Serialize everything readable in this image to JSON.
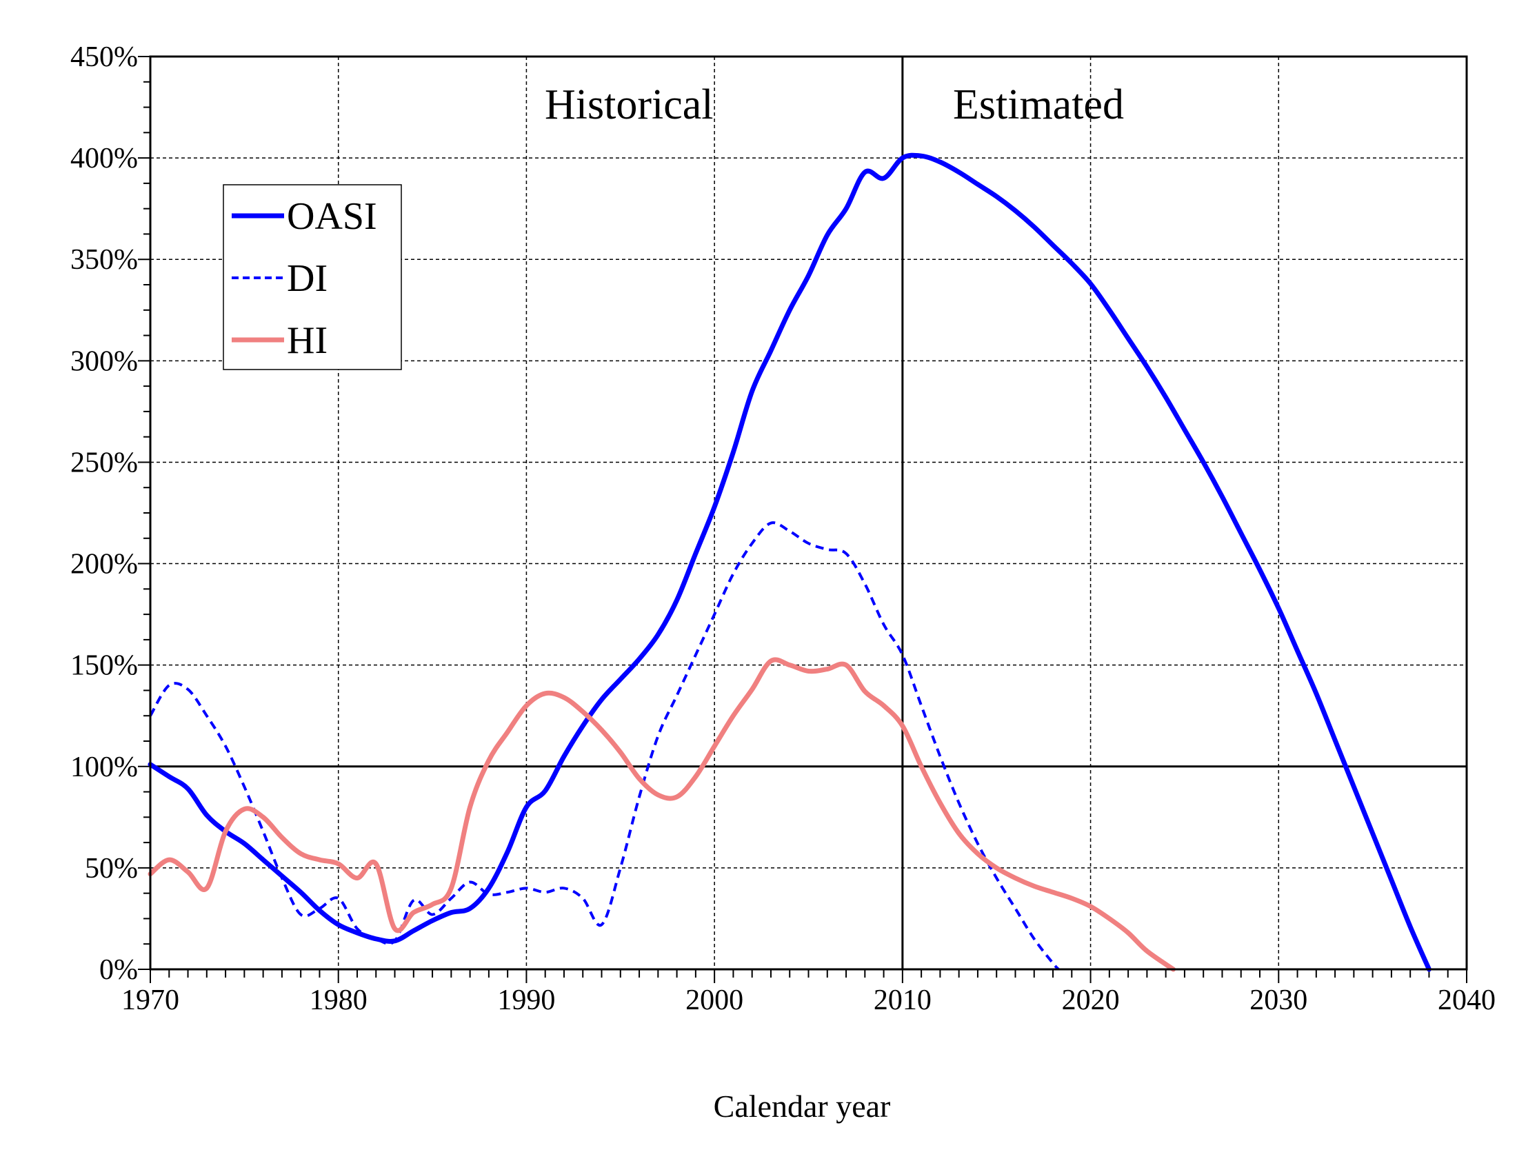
{
  "chart_data": {
    "type": "line",
    "title": "",
    "xlabel": "Calendar year",
    "ylabel": "",
    "xlim": [
      1970,
      2040
    ],
    "ylim": [
      0,
      450
    ],
    "x_ticks": [
      "1970",
      "1980",
      "1990",
      "2000",
      "2010",
      "2020",
      "2030",
      "2040"
    ],
    "y_ticks": [
      "0%",
      "50%",
      "100%",
      "150%",
      "200%",
      "250%",
      "300%",
      "350%",
      "400%",
      "450%"
    ],
    "grid": true,
    "legend_placement": "upper-left",
    "reference_lines": {
      "y": 100,
      "x": 2010
    },
    "annotations": [
      "Historical",
      "Estimated"
    ],
    "series": [
      {
        "name": "OASI",
        "color": "#0000ff",
        "style": "solid",
        "x": [
          1970,
          1971,
          1972,
          1973,
          1974,
          1975,
          1976,
          1977,
          1978,
          1979,
          1980,
          1981,
          1982,
          1983,
          1984,
          1985,
          1986,
          1987,
          1988,
          1989,
          1990,
          1991,
          1992,
          1993,
          1994,
          1995,
          1996,
          1997,
          1998,
          1999,
          2000,
          2001,
          2002,
          2003,
          2004,
          2005,
          2006,
          2007,
          2008,
          2009,
          2010,
          2011,
          2012,
          2013,
          2014,
          2015,
          2016,
          2017,
          2018,
          2019,
          2020,
          2021,
          2022,
          2023,
          2024,
          2025,
          2026,
          2027,
          2028,
          2029,
          2030,
          2031,
          2032,
          2033,
          2034,
          2035,
          2036,
          2037,
          2038
        ],
        "y": [
          101,
          95,
          89,
          76,
          68,
          62,
          54,
          46,
          38,
          29,
          22,
          18,
          15,
          14,
          19,
          24,
          28,
          30,
          40,
          58,
          80,
          88,
          105,
          120,
          133,
          143,
          153,
          165,
          182,
          205,
          228,
          255,
          285,
          305,
          325,
          342,
          362,
          375,
          393,
          390,
          400,
          401,
          398,
          393,
          387,
          381,
          374,
          366,
          357,
          348,
          338,
          325,
          311,
          297,
          282,
          266,
          250,
          233,
          215,
          197,
          178,
          157,
          136,
          113,
          90,
          67,
          44,
          21,
          0
        ]
      },
      {
        "name": "DI",
        "color": "#0000ff",
        "style": "dashed",
        "x": [
          1970,
          1971,
          1972,
          1973,
          1974,
          1975,
          1976,
          1977,
          1978,
          1979,
          1980,
          1981,
          1982,
          1983,
          1984,
          1985,
          1986,
          1987,
          1988,
          1989,
          1990,
          1991,
          1992,
          1993,
          1994,
          1995,
          1996,
          1997,
          1998,
          1999,
          2000,
          2001,
          2002,
          2003,
          2004,
          2005,
          2006,
          2007,
          2008,
          2009,
          2010,
          2011,
          2012,
          2013,
          2014,
          2015,
          2016,
          2017,
          2018,
          2018.3
        ],
        "y": [
          125,
          140,
          138,
          125,
          110,
          90,
          68,
          45,
          27,
          30,
          35,
          20,
          15,
          14,
          34,
          27,
          35,
          43,
          37,
          38,
          40,
          38,
          40,
          35,
          22,
          50,
          85,
          115,
          135,
          155,
          175,
          195,
          210,
          220,
          216,
          210,
          207,
          205,
          190,
          170,
          155,
          130,
          105,
          82,
          62,
          45,
          30,
          15,
          3,
          0
        ]
      },
      {
        "name": "HI",
        "color": "#f08080",
        "style": "solid",
        "x": [
          1970,
          1971,
          1972,
          1973,
          1974,
          1975,
          1976,
          1977,
          1978,
          1979,
          1980,
          1981,
          1982,
          1983,
          1984,
          1985,
          1986,
          1987,
          1988,
          1989,
          1990,
          1991,
          1992,
          1993,
          1994,
          1995,
          1996,
          1997,
          1998,
          1999,
          2000,
          2001,
          2002,
          2003,
          2004,
          2005,
          2006,
          2007,
          2008,
          2009,
          2010,
          2011,
          2012,
          2013,
          2014,
          2015,
          2016,
          2017,
          2018,
          2019,
          2020,
          2021,
          2022,
          2023,
          2024.4
        ],
        "y": [
          47,
          54,
          48,
          40,
          68,
          79,
          75,
          65,
          57,
          54,
          52,
          45,
          52,
          20,
          28,
          32,
          40,
          80,
          103,
          117,
          130,
          136,
          134,
          127,
          118,
          107,
          94,
          86,
          85,
          95,
          110,
          125,
          138,
          152,
          150,
          147,
          148,
          150,
          137,
          130,
          120,
          100,
          82,
          67,
          57,
          50,
          45,
          41,
          38,
          35,
          31,
          25,
          18,
          9,
          0
        ]
      }
    ]
  }
}
